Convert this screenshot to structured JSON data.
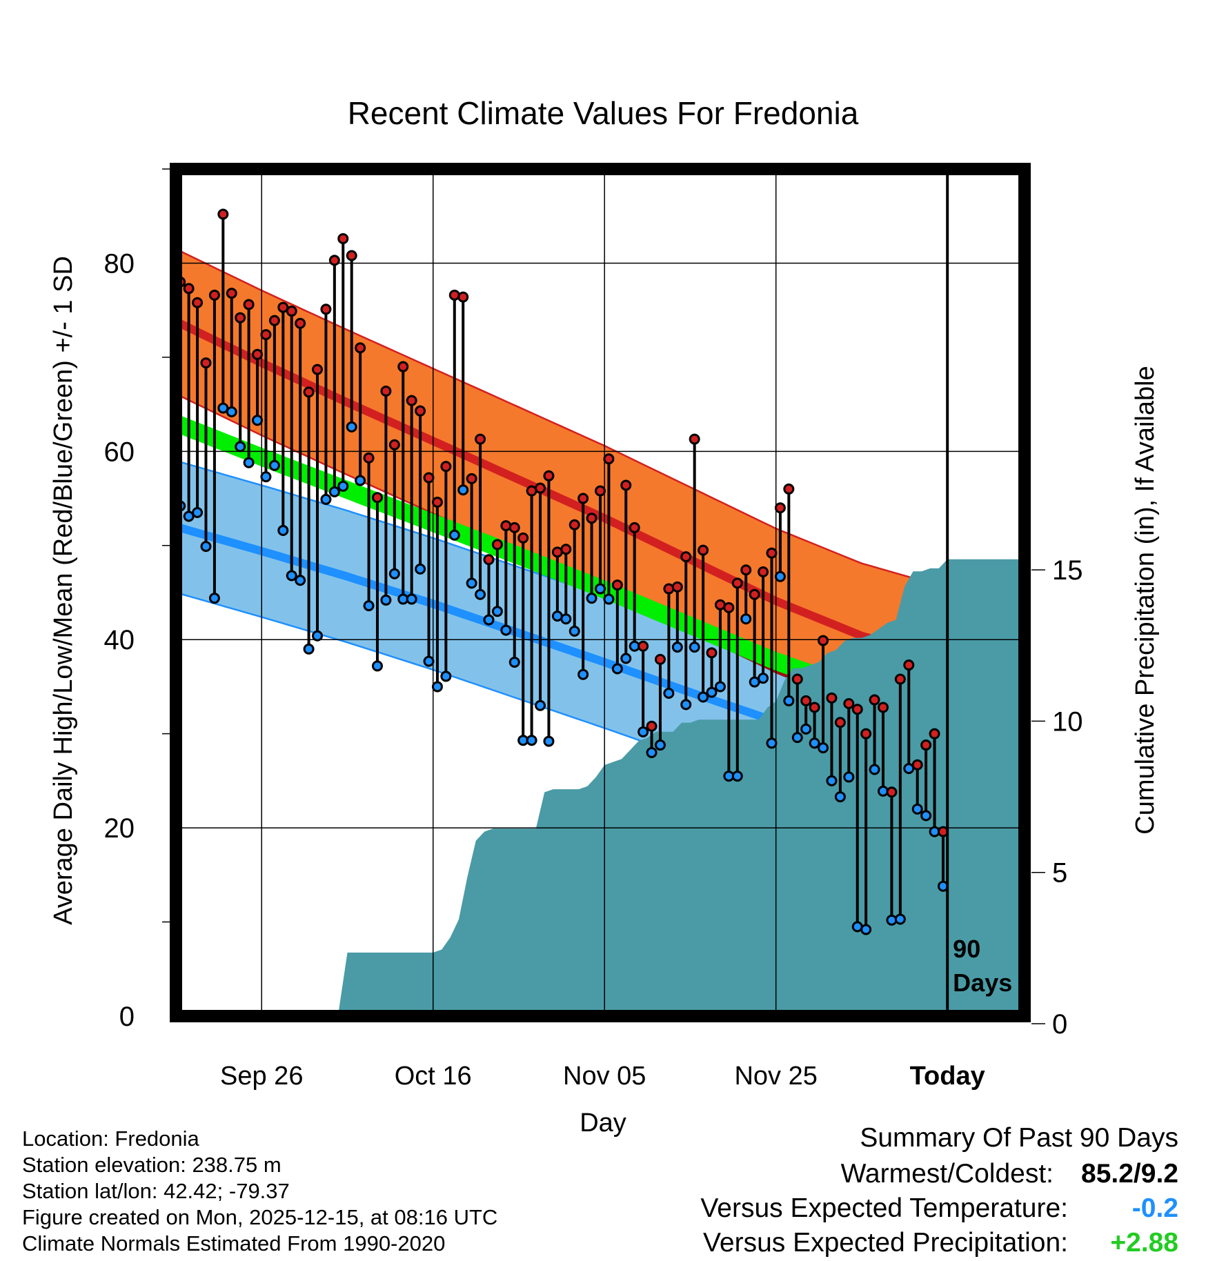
{
  "chart_data": {
    "type": "line",
    "title": "Recent Climate Values For Fredonia",
    "xlabel": "Day",
    "ylabel_left": "Average Daily High/Low/Mean (Red/Blue/Green) +/- 1 SD",
    "ylabel_right": "Cumulative Precipitation (in), If Available",
    "x_range_days": [
      -90,
      9
    ],
    "ylim_left": [
      0,
      90
    ],
    "ylim_right": [
      0,
      28
    ],
    "y_ticks_left": [
      "0",
      "20",
      "40",
      "60",
      "80"
    ],
    "y_ticks_right": [
      "0",
      "5",
      "10",
      "15"
    ],
    "x_ticks": [
      {
        "day": -80,
        "label": "Sep 26"
      },
      {
        "day": -60,
        "label": "Oct 16"
      },
      {
        "day": -40,
        "label": "Nov 05"
      },
      {
        "day": -20,
        "label": "Nov 25"
      },
      {
        "day": 0,
        "label": "Today"
      }
    ],
    "today_marker": {
      "line1": "90",
      "line2": "Days"
    },
    "normals": {
      "days": [
        -90,
        -80,
        -70,
        -60,
        -50,
        -40,
        -30,
        -20,
        -10,
        0,
        9
      ],
      "high_mean": [
        73.8,
        69.4,
        65.2,
        61.1,
        57.0,
        52.9,
        48.5,
        44.1,
        40.4,
        37.8,
        36.3
      ],
      "high_sd": 7.7,
      "low_mean": [
        52.0,
        49.4,
        46.7,
        43.8,
        40.7,
        37.6,
        34.4,
        31.3,
        28.5,
        26.4,
        25.0
      ],
      "low_sd": 7.0,
      "mean": [
        63.0,
        59.4,
        55.9,
        52.4,
        48.9,
        45.3,
        41.5,
        37.7,
        34.5,
        32.1,
        30.7
      ],
      "mean_sd": 1.0
    },
    "series": [
      {
        "name": "High",
        "color": "#d22020",
        "values": [
          78,
          77.3,
          75.8,
          69.4,
          76.6,
          85.2,
          76.8,
          74.2,
          75.6,
          70.3,
          72.4,
          73.9,
          75.3,
          74.9,
          73.6,
          66.3,
          68.7,
          75.1,
          80.3,
          82.6,
          80.8,
          71,
          59.3,
          55.1,
          66.4,
          60.7,
          69,
          65.4,
          64.3,
          57.2,
          54.6,
          58.4,
          76.6,
          76.4,
          57.1,
          61.3,
          48.5,
          50.1,
          52.1,
          51.9,
          50.8,
          55.8,
          56.1,
          57.4,
          49.3,
          49.6,
          52.2,
          55,
          52.9,
          55.8,
          59.2,
          45.8,
          56.4,
          51.9,
          39.3,
          30.8,
          37.9,
          45.4,
          45.6,
          48.8,
          61.3,
          49.5,
          38.6,
          43.7,
          43.4,
          46,
          47.4,
          44.8,
          47.2,
          49.2,
          54,
          56,
          35.8,
          33.5,
          32.8,
          39.9,
          33.8,
          31.2,
          33.2,
          32.6,
          30,
          33.6,
          32.8,
          23.8,
          35.8,
          37.3,
          26.7,
          28.8,
          30,
          19.6
        ]
      },
      {
        "name": "Low",
        "color": "#1e90ff",
        "values": [
          54.2,
          53.1,
          53.5,
          49.9,
          44.4,
          64.6,
          64.2,
          60.5,
          58.8,
          63.3,
          57.3,
          58.5,
          51.6,
          46.8,
          46.3,
          39,
          40.4,
          54.9,
          55.7,
          56.3,
          62.6,
          56.9,
          43.6,
          37.2,
          44.2,
          47,
          44.3,
          44.3,
          47.5,
          37.7,
          35,
          36.1,
          51.1,
          55.9,
          46,
          44.8,
          42.1,
          43,
          41,
          37.6,
          29.3,
          29.3,
          33,
          29.2,
          42.5,
          42.2,
          40.9,
          36.3,
          44.4,
          45.4,
          44.3,
          36.9,
          38,
          39.3,
          30.2,
          28,
          28.8,
          34.3,
          39.2,
          33.1,
          39.2,
          33.9,
          34.4,
          35,
          25.5,
          25.5,
          42.2,
          35.5,
          35.9,
          29,
          46.7,
          33.5,
          29.6,
          30.5,
          29,
          28.5,
          25,
          23.3,
          25.4,
          9.5,
          9.2,
          26.2,
          23.9,
          10.2,
          10.3,
          26.3,
          22,
          21.3,
          19.6,
          13.8
        ]
      }
    ],
    "precip_cumulative": {
      "days": [
        -90,
        -82,
        -81,
        -71,
        -70,
        -60,
        -59,
        -58,
        -57,
        -56,
        -55,
        -54,
        -53,
        -52,
        -48,
        -47,
        -46,
        -43,
        -42,
        -41,
        -40,
        -39,
        -38,
        -37,
        -36,
        -35,
        -34,
        -33,
        -32,
        -31,
        -30,
        -29,
        -28,
        -27,
        -26,
        -25,
        -24,
        -23,
        -22,
        -21,
        -20,
        -19,
        -18,
        -17,
        -16,
        -15,
        -14,
        -13,
        -12,
        -11,
        -10,
        -9,
        -8,
        -7,
        -6,
        -5,
        -4,
        -3,
        -2,
        -1,
        0,
        9
      ],
      "values": [
        0,
        0,
        0.2,
        0.2,
        2.1,
        2.1,
        2.2,
        2.6,
        3.2,
        4.6,
        5.8,
        6.1,
        6.2,
        6.2,
        6.2,
        7.4,
        7.5,
        7.5,
        7.6,
        7.9,
        8.3,
        8.4,
        8.5,
        8.8,
        9.1,
        9.2,
        9.4,
        9.4,
        9.4,
        9.7,
        9.7,
        9.8,
        9.8,
        9.8,
        9.8,
        9.8,
        9.8,
        9.8,
        9.8,
        10.2,
        10.4,
        11.1,
        11.5,
        11.5,
        11.6,
        11.7,
        12,
        12.1,
        12.4,
        12.5,
        12.5,
        12.6,
        12.8,
        13,
        13.1,
        14.2,
        14.7,
        14.7,
        14.8,
        14.8,
        15.1,
        15.1
      ]
    }
  },
  "info": {
    "location": "Location: Fredonia",
    "elevation": "Station elevation: 238.75 m",
    "latlon": "Station lat/lon: 42.42; -79.37",
    "created": "Figure created on Mon, 2025-12-15, at 08:16 UTC",
    "normals": "Climate Normals Estimated From 1990-2020"
  },
  "summary": {
    "title": "Summary Of Past 90 Days",
    "warmest_label": "Warmest/Coldest:",
    "warmest_value": "85.2/9.2",
    "temp_label": "Versus Expected Temperature:",
    "temp_value": "-0.2",
    "temp_color": "#1e90ff",
    "precip_label": "Versus Expected Precipitation:",
    "precip_value": "+2.88",
    "precip_color": "#22cc22"
  },
  "colors": {
    "high_band": "#f5792c",
    "high_line": "#d22020",
    "low_band": "#82c2ea",
    "low_line": "#1e90ff",
    "mean_band": "#00ee00",
    "overlap_band": "#9c1010",
    "precip_fill": "#4a9ba6"
  }
}
